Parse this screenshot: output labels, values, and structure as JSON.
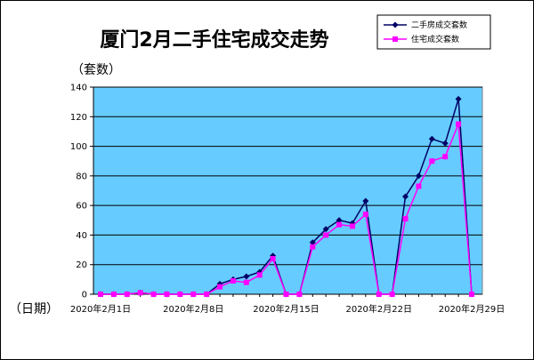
{
  "chart_data": {
    "type": "line",
    "title": "厦门2月二手住宅成交走势",
    "ylabel": "（套数）",
    "xlabel": "（日期）",
    "ylim": [
      0,
      140
    ],
    "y_ticks": [
      "0",
      "20",
      "40",
      "60",
      "80",
      "100",
      "120",
      "140"
    ],
    "x_tick_labels": [
      "2020年2月1日",
      "2020年2月8日",
      "2020年2月15日",
      "2020年2月22日",
      "2020年2月29日"
    ],
    "x": [
      "2020年2月1日",
      "2020年2月2日",
      "2020年2月3日",
      "2020年2月4日",
      "2020年2月5日",
      "2020年2月6日",
      "2020年2月7日",
      "2020年2月8日",
      "2020年2月9日",
      "2020年2月10日",
      "2020年2月11日",
      "2020年2月12日",
      "2020年2月13日",
      "2020年2月14日",
      "2020年2月15日",
      "2020年2月16日",
      "2020年2月17日",
      "2020年2月18日",
      "2020年2月19日",
      "2020年2月20日",
      "2020年2月21日",
      "2020年2月22日",
      "2020年2月23日",
      "2020年2月24日",
      "2020年2月25日",
      "2020年2月26日",
      "2020年2月27日",
      "2020年2月28日",
      "2020年2月29日"
    ],
    "series": [
      {
        "name": "二手房成交套数",
        "color": "#000066",
        "marker": "diamond",
        "values": [
          0,
          0,
          0,
          1,
          0,
          0,
          0,
          0,
          0,
          7,
          10,
          12,
          15,
          26,
          0,
          0,
          35,
          44,
          50,
          48,
          63,
          0,
          0,
          66,
          80,
          105,
          102,
          132,
          0
        ]
      },
      {
        "name": "住宅成交套数",
        "color": "#ff00ff",
        "marker": "square",
        "values": [
          0,
          0,
          0,
          1,
          0,
          0,
          0,
          0,
          0,
          5,
          9,
          8,
          13,
          24,
          0,
          0,
          32,
          40,
          47,
          46,
          54,
          0,
          0,
          51,
          73,
          90,
          93,
          115,
          0
        ]
      }
    ],
    "legend_position": "top-right",
    "plot_background": "#66ccff",
    "grid": true
  }
}
